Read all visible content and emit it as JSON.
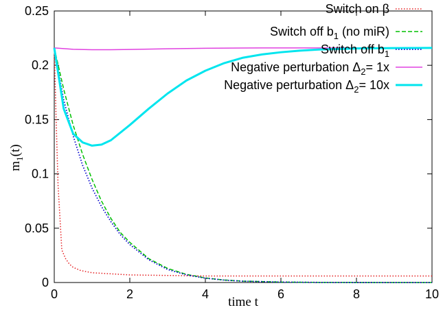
{
  "chart_data": {
    "type": "line",
    "xlabel": "time t",
    "ylabel": {
      "main": "m",
      "sub": "1",
      "suffix": "(t)"
    },
    "xlim": [
      0,
      10
    ],
    "ylim": [
      0,
      0.25
    ],
    "xticks": [
      "0",
      "2",
      "4",
      "6",
      "8",
      "10"
    ],
    "yticks": [
      "0",
      "0.05",
      "0.1",
      "0.15",
      "0.2",
      "0.25"
    ],
    "grid": false,
    "legend_position": "top-right",
    "series": [
      {
        "name": "Switch on β",
        "legend": {
          "before": "Switch on β",
          "sub": "",
          "after": ""
        },
        "color": "#e41a1c",
        "dash": "dotted",
        "width": 1.5,
        "x": [
          0,
          0.05,
          0.1,
          0.2,
          0.3,
          0.4,
          0.5,
          0.7,
          1.0,
          1.5,
          2,
          3,
          4,
          5,
          6,
          8,
          10
        ],
        "y": [
          0.216,
          0.15,
          0.09,
          0.03,
          0.022,
          0.017,
          0.014,
          0.011,
          0.009,
          0.008,
          0.007,
          0.0065,
          0.006,
          0.006,
          0.006,
          0.006,
          0.006
        ]
      },
      {
        "name": "Switch off b1 (no miR)",
        "legend": {
          "before": "Switch off b",
          "sub": "1",
          "after": " (no miR)"
        },
        "color": "#00c000",
        "dash": "dashed",
        "width": 1.5,
        "x": [
          0,
          0.25,
          0.5,
          0.75,
          1.0,
          1.25,
          1.5,
          1.75,
          2.0,
          2.5,
          3.0,
          3.5,
          4.0,
          4.5,
          5.0,
          6.0,
          7.0,
          8.0,
          10.0
        ],
        "y": [
          0.216,
          0.178,
          0.145,
          0.118,
          0.095,
          0.075,
          0.059,
          0.046,
          0.037,
          0.022,
          0.013,
          0.0075,
          0.0042,
          0.0023,
          0.0013,
          0.0004,
          0.0001,
          3e-05,
          0.0
        ]
      },
      {
        "name": "Switch off b1",
        "legend": {
          "before": "Switch off b",
          "sub": "1",
          "after": ""
        },
        "color": "#0000cc",
        "dash": "dotted",
        "width": 1.8,
        "x": [
          0,
          0.25,
          0.5,
          0.75,
          1.0,
          1.25,
          1.5,
          1.75,
          2.0,
          2.5,
          3.0,
          3.5,
          4.0,
          4.5,
          5.0,
          6.0,
          7.0,
          8.0,
          10.0
        ],
        "y": [
          0.216,
          0.168,
          0.135,
          0.108,
          0.087,
          0.07,
          0.056,
          0.044,
          0.035,
          0.021,
          0.012,
          0.007,
          0.004,
          0.0022,
          0.0012,
          0.0004,
          0.0001,
          3e-05,
          0.0
        ]
      },
      {
        "name": "Negative perturbation Δ2= 1x",
        "legend": {
          "before": "Negative perturbation Δ",
          "sub": "2",
          "after": "= 1x"
        },
        "color": "#e040e0",
        "dash": "solid",
        "width": 1.5,
        "x": [
          0,
          0.5,
          1.0,
          1.5,
          2.0,
          3.0,
          4.0,
          5.0,
          6.0,
          8.0,
          10.0
        ],
        "y": [
          0.216,
          0.2147,
          0.2143,
          0.2143,
          0.2146,
          0.2152,
          0.2157,
          0.2159,
          0.216,
          0.216,
          0.216
        ]
      },
      {
        "name": "Negative perturbation Δ2= 10x",
        "legend": {
          "before": "Negative perturbation Δ",
          "sub": "2",
          "after": "= 10x"
        },
        "color": "#00e5ee",
        "dash": "solid",
        "width": 3,
        "x": [
          0,
          0.25,
          0.5,
          0.75,
          1.0,
          1.25,
          1.5,
          2.0,
          2.5,
          3.0,
          3.5,
          4.0,
          4.5,
          5.0,
          5.5,
          6.0,
          6.5,
          7.0,
          8.0,
          9.0,
          10.0
        ],
        "y": [
          0.216,
          0.16,
          0.137,
          0.129,
          0.126,
          0.127,
          0.131,
          0.145,
          0.16,
          0.174,
          0.186,
          0.195,
          0.202,
          0.207,
          0.21,
          0.212,
          0.2135,
          0.2145,
          0.2155,
          0.2158,
          0.216
        ]
      }
    ]
  }
}
